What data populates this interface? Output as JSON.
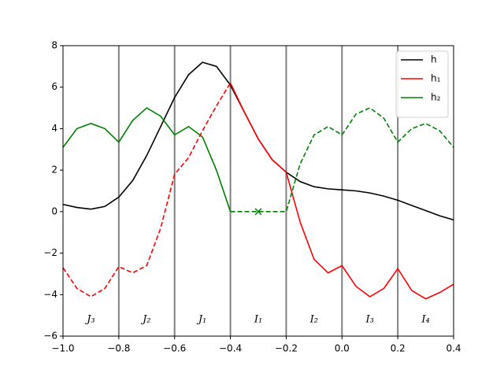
{
  "chart_data": {
    "type": "line",
    "x": [
      -1.0,
      -0.95,
      -0.9,
      -0.85,
      -0.8,
      -0.75,
      -0.7,
      -0.65,
      -0.6,
      -0.55,
      -0.5,
      -0.45,
      -0.4,
      -0.35,
      -0.3,
      -0.25,
      -0.2,
      -0.15,
      -0.1,
      -0.05,
      0.0,
      0.05,
      0.1,
      0.15,
      0.2,
      0.25,
      0.3,
      0.35,
      0.4
    ],
    "series": [
      {
        "name": "h",
        "color": "#000000",
        "values": [
          0.35,
          0.2,
          0.12,
          0.25,
          0.7,
          1.5,
          2.7,
          4.1,
          5.5,
          6.6,
          7.2,
          7.0,
          6.1,
          4.8,
          3.5,
          2.5,
          1.9,
          1.45,
          1.2,
          1.1,
          1.05,
          1.0,
          0.9,
          0.75,
          0.55,
          0.3,
          0.05,
          -0.2,
          -0.4
        ]
      },
      {
        "name": "h₁",
        "color": "#ff0000",
        "values": [
          null,
          null,
          null,
          null,
          null,
          null,
          null,
          null,
          null,
          null,
          null,
          null,
          6.2,
          4.8,
          3.5,
          2.5,
          1.9,
          -0.5,
          -2.3,
          -2.95,
          -2.6,
          -3.6,
          -4.1,
          -3.7,
          -2.75,
          -3.8,
          -4.2,
          -3.9,
          -3.5
        ]
      },
      {
        "name": "h₂",
        "color": "#008000",
        "values": [
          3.1,
          4.0,
          4.25,
          4.0,
          3.35,
          4.4,
          5.0,
          4.6,
          3.7,
          4.1,
          3.6,
          2.0,
          0,
          null,
          null,
          null,
          null,
          null,
          null,
          null,
          null,
          null,
          null,
          null,
          null,
          null,
          null,
          null,
          null
        ]
      },
      {
        "color": "#ff0000",
        "dashed": true,
        "values": [
          -2.7,
          -3.7,
          -4.1,
          -3.7,
          -2.65,
          -2.95,
          -2.6,
          -0.8,
          1.8,
          2.6,
          3.9,
          5.1,
          6.2,
          null,
          null,
          null,
          null,
          null,
          null,
          null,
          null,
          null,
          null,
          null,
          null,
          null,
          null,
          null,
          null
        ]
      },
      {
        "color": "#008000",
        "dashed": true,
        "values": [
          null,
          null,
          null,
          null,
          null,
          null,
          null,
          null,
          null,
          null,
          null,
          null,
          0,
          0,
          0,
          0,
          0,
          2.3,
          3.7,
          4.1,
          3.7,
          4.7,
          5.0,
          4.5,
          3.35,
          4.0,
          4.25,
          3.9,
          3.1
        ]
      }
    ],
    "vlines": [
      -0.8,
      -0.6,
      -0.4,
      -0.2,
      0.0,
      0.2
    ],
    "vline_color": "#808080",
    "markers": [
      {
        "x": -0.3,
        "y": 0,
        "color": "#008000"
      }
    ],
    "annotations": [
      {
        "text": "J₃",
        "x": -0.9,
        "y": -5.2
      },
      {
        "text": "J₂",
        "x": -0.7,
        "y": -5.2
      },
      {
        "text": "J₁",
        "x": -0.5,
        "y": -5.2
      },
      {
        "text": "I₁",
        "x": -0.3,
        "y": -5.2
      },
      {
        "text": "I₂",
        "x": -0.1,
        "y": -5.2
      },
      {
        "text": "I₃",
        "x": 0.1,
        "y": -5.2
      },
      {
        "text": "I₄",
        "x": 0.3,
        "y": -5.2
      }
    ],
    "xlim": [
      -1.0,
      0.4
    ],
    "xticks": [
      {
        "value": -1.0,
        "label": "−1.0"
      },
      {
        "value": -0.8,
        "label": "−0.8"
      },
      {
        "value": -0.6,
        "label": "−0.6"
      },
      {
        "value": -0.4,
        "label": "−0.4"
      },
      {
        "value": -0.2,
        "label": "−0.2"
      },
      {
        "value": 0.0,
        "label": "0.0"
      },
      0.2,
      0.4
    ],
    "ylim": [
      -6,
      8
    ],
    "yticks": [
      {
        "value": -6,
        "label": "−6"
      },
      {
        "value": -4,
        "label": "−4"
      },
      {
        "value": -2,
        "label": "−2"
      },
      0,
      2,
      4,
      6,
      8
    ],
    "legend": "upper right"
  }
}
